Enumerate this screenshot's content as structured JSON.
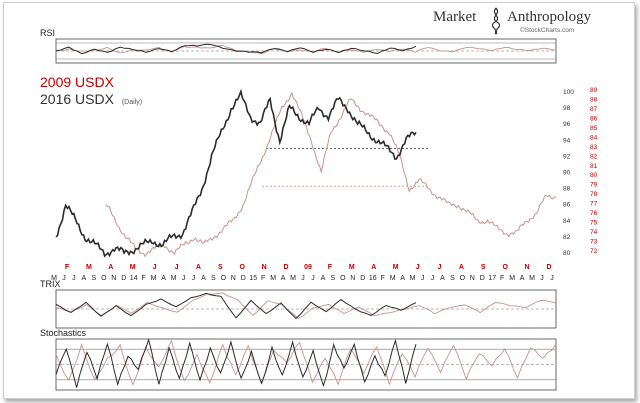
{
  "brand": {
    "name_left": "Market",
    "name_right": "Anthropology",
    "source": "©StockCharts.com"
  },
  "legend": {
    "series_2009": {
      "label": "2009 USDX",
      "color": "#c00000"
    },
    "series_2016": {
      "label": "2016 USDX",
      "suffix": "(Daily)",
      "color": "#333333"
    }
  },
  "colors": {
    "line_2009": "#c9928c",
    "line_2016": "#2b2b2b",
    "reference": "#333333",
    "reference_2009": "#c9928c"
  },
  "chart_data": [
    {
      "panel": "RSI",
      "type": "line",
      "title": "RSI",
      "series": [
        {
          "name": "2009 USDX",
          "x_range": [
            0.0,
            1.0
          ],
          "values": [
            52,
            55,
            48,
            50,
            58,
            46,
            54,
            51,
            57,
            49,
            62,
            60,
            56,
            63,
            52,
            50,
            44,
            55,
            47,
            53,
            50,
            58,
            45,
            52,
            48,
            56,
            50,
            54,
            47,
            60,
            52,
            49,
            58,
            55,
            52,
            61,
            54,
            50,
            56,
            53
          ]
        },
        {
          "name": "2016 USDX",
          "x_range": [
            0.0,
            0.72
          ],
          "values": [
            50,
            58,
            42,
            55,
            48,
            60,
            52,
            46,
            57,
            50,
            64,
            62,
            66,
            58,
            52,
            48,
            45,
            56,
            50,
            60,
            47,
            53,
            46,
            58,
            52,
            44,
            56,
            50,
            62
          ]
        }
      ],
      "ylim": [
        20,
        80
      ],
      "reference_lines": [
        70,
        50,
        30
      ]
    },
    {
      "panel": "Price",
      "type": "line",
      "title": "",
      "series": [
        {
          "name": "2009 USDX",
          "x_range": [
            0.1,
            1.0
          ],
          "values": [
            86,
            84,
            82,
            80.5,
            80,
            80.5,
            81,
            80,
            81,
            82,
            81,
            82,
            83,
            84,
            86,
            89,
            92,
            95,
            98,
            100,
            97,
            94,
            90,
            95,
            97,
            99,
            98,
            97,
            96,
            95,
            92,
            88,
            89,
            88,
            87,
            86,
            86,
            85,
            84,
            84,
            83,
            82.5,
            82.5,
            84,
            85,
            87,
            87
          ]
        },
        {
          "name": "2016 USDX",
          "x_range": [
            0.0,
            0.72
          ],
          "values": [
            82,
            86,
            84,
            82,
            81,
            80,
            80.5,
            80,
            80.5,
            81,
            81.5,
            81,
            82,
            82.5,
            85,
            88,
            92,
            95,
            98,
            99.5,
            97,
            96,
            99,
            94,
            98,
            97,
            96,
            98,
            97,
            99,
            98,
            96,
            95,
            94,
            93,
            92,
            94,
            95
          ]
        }
      ],
      "y_ticks_2016": [
        80,
        82,
        84,
        86,
        88,
        90,
        92,
        94,
        96,
        98,
        100
      ],
      "y_ticks_2009": [
        72,
        73,
        74,
        75,
        76,
        77,
        78,
        79,
        80,
        81,
        82,
        83,
        84,
        85,
        86,
        87,
        88,
        89
      ],
      "ylim": [
        79,
        100.5
      ],
      "reference_lines": [
        {
          "series": "2016 USDX",
          "value": 93
        },
        {
          "series": "2009 USDX",
          "value": 88.3
        }
      ],
      "x_ticks_2009": [
        "F",
        "M",
        "A",
        "M",
        "J",
        "J",
        "A",
        "S",
        "O",
        "N",
        "D",
        "09",
        "F",
        "M",
        "A",
        "M",
        "J",
        "J",
        "A",
        "S",
        "O",
        "N",
        "D"
      ],
      "x_ticks_2016": [
        "M",
        "J",
        "J",
        "A",
        "S",
        "O",
        "N",
        "D",
        "14",
        "F",
        "M",
        "A",
        "M",
        "J",
        "J",
        "A",
        "S",
        "O",
        "N",
        "D",
        "15",
        "F",
        "M",
        "A",
        "M",
        "J",
        "J",
        "A",
        "S",
        "O",
        "N",
        "D",
        "16",
        "F",
        "M",
        "A",
        "M",
        "J",
        "J",
        "A",
        "S",
        "O",
        "N",
        "D",
        "17",
        "F",
        "M",
        "A",
        "M",
        "J",
        "J"
      ]
    },
    {
      "panel": "TRIX",
      "type": "line",
      "title": "TRIX",
      "series": [
        {
          "name": "2009 USDX",
          "x_range": [
            0.0,
            1.0
          ],
          "values": [
            0.1,
            -0.2,
            0.3,
            -0.4,
            0.2,
            -0.3,
            0.4,
            0.1,
            -0.2,
            0.5,
            0.9,
            1.0,
            0.6,
            -0.4,
            0.5,
            0.2,
            -0.6,
            0.1,
            0.3,
            -0.3,
            0.1,
            -0.4,
            -0.2,
            0.0,
            0.2,
            -0.3,
            0.1,
            0.3,
            -0.2,
            0.4,
            0.2,
            0.1,
            0.6,
            0.4
          ]
        },
        {
          "name": "2016 USDX",
          "x_range": [
            0.0,
            0.72
          ],
          "values": [
            0.3,
            -0.2,
            0.4,
            -0.5,
            0.2,
            -0.4,
            0.3,
            0.6,
            0.1,
            0.7,
            1.0,
            0.8,
            -0.6,
            0.5,
            -0.3,
            0.4,
            -0.6,
            0.4,
            -0.2,
            0.6,
            0.0,
            -0.4,
            0.2,
            -0.1,
            0.4
          ]
        }
      ],
      "ylim": [
        -1.2,
        1.2
      ],
      "reference_lines": [
        0
      ]
    },
    {
      "panel": "Stochastics",
      "type": "line",
      "title": "Stochastics",
      "series": [
        {
          "name": "2009 USDX",
          "x_range": [
            0.0,
            1.0
          ],
          "values": [
            70,
            20,
            85,
            15,
            60,
            90,
            10,
            80,
            40,
            95,
            20,
            70,
            10,
            85,
            30,
            90,
            15,
            75,
            50,
            95,
            20,
            65,
            10,
            80,
            35,
            90,
            15,
            70,
            25,
            85,
            40,
            90,
            20,
            70,
            50,
            85,
            25,
            80,
            60,
            90
          ]
        },
        {
          "name": "2016 USDX",
          "x_range": [
            0.0,
            0.72
          ],
          "values": [
            30,
            85,
            10,
            75,
            20,
            90,
            15,
            70,
            40,
            95,
            10,
            85,
            25,
            90,
            15,
            80,
            35,
            95,
            20,
            70,
            10,
            85,
            30,
            90,
            20,
            75,
            10,
            90,
            40,
            85,
            15,
            70,
            30,
            95,
            10,
            90
          ]
        }
      ],
      "ylim": [
        0,
        100
      ],
      "reference_lines": [
        80,
        50,
        20
      ]
    }
  ]
}
